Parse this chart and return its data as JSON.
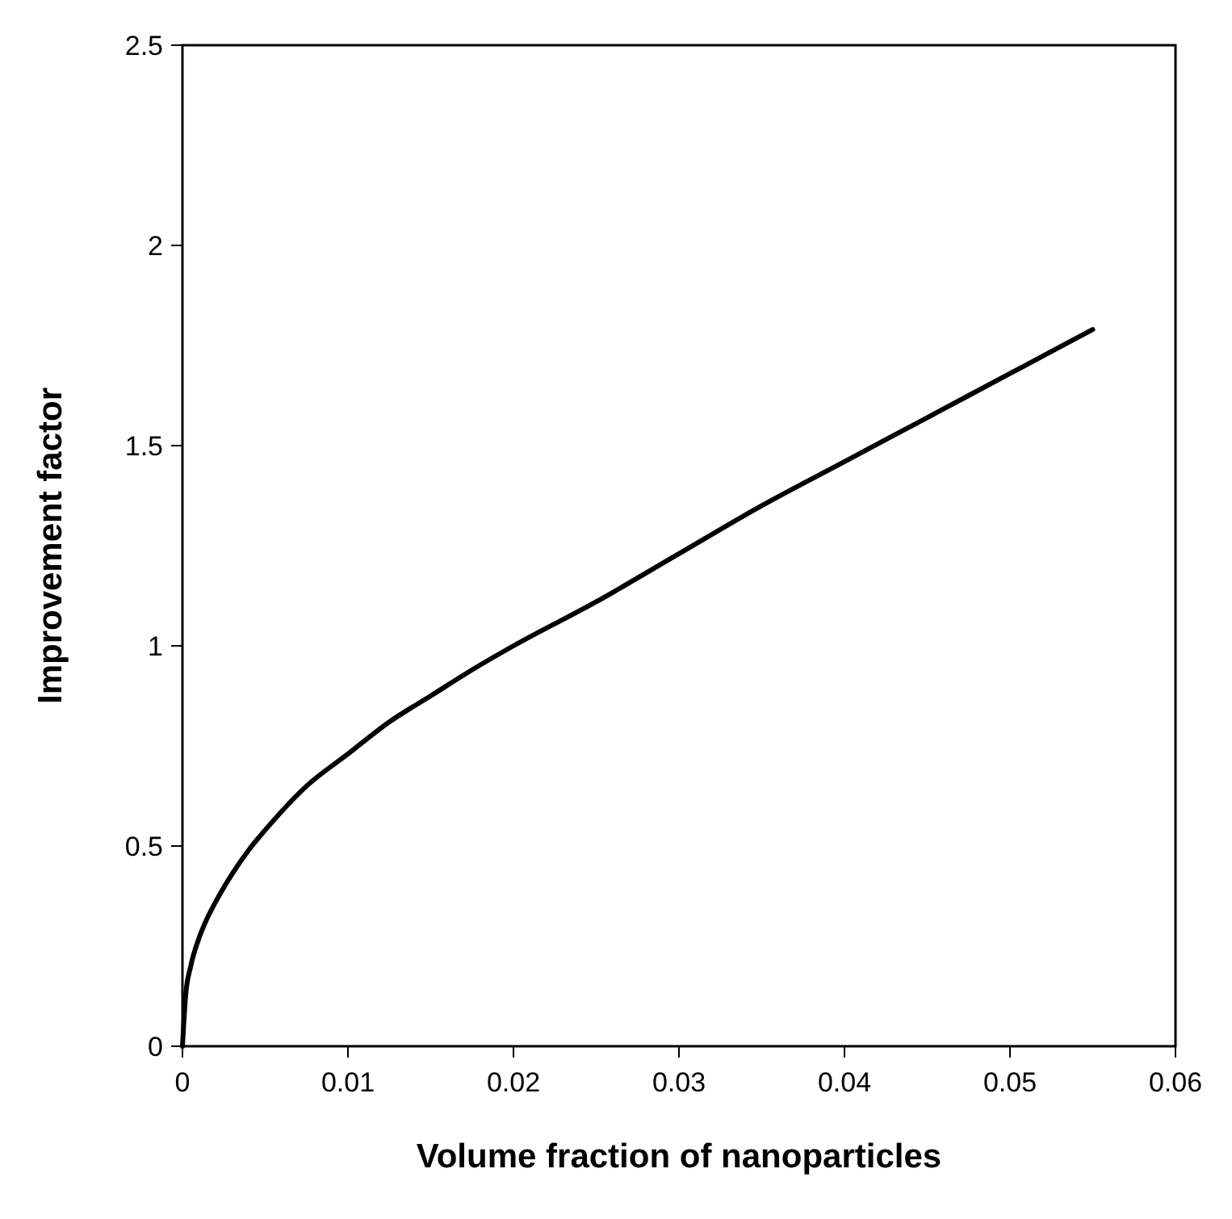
{
  "chart_data": {
    "type": "line",
    "xlabel": "Volume fraction of nanoparticles",
    "ylabel": "Improvement factor",
    "series": [
      {
        "color": "#000000",
        "x": [
          0,
          0.0002,
          0.0005,
          0.001,
          0.0015,
          0.002,
          0.003,
          0.004,
          0.005,
          0.0075,
          0.01,
          0.0125,
          0.015,
          0.0175,
          0.02,
          0.025,
          0.03,
          0.035,
          0.04,
          0.045,
          0.05,
          0.055
        ],
        "values": [
          0,
          0.13,
          0.2,
          0.27,
          0.32,
          0.36,
          0.43,
          0.49,
          0.54,
          0.65,
          0.73,
          0.81,
          0.875,
          0.94,
          1.0,
          1.11,
          1.23,
          1.35,
          1.46,
          1.57,
          1.68,
          1.79
        ]
      }
    ],
    "xlim": [
      0,
      0.06
    ],
    "xticks": [
      0,
      0.01,
      0.02,
      0.03,
      0.04,
      0.05,
      0.06
    ],
    "ylim": [
      0,
      2.5
    ],
    "yticks": [
      0,
      0.5,
      1,
      1.5,
      2,
      2.5
    ],
    "grid": false,
    "marker": "none",
    "line_style": "solid"
  }
}
